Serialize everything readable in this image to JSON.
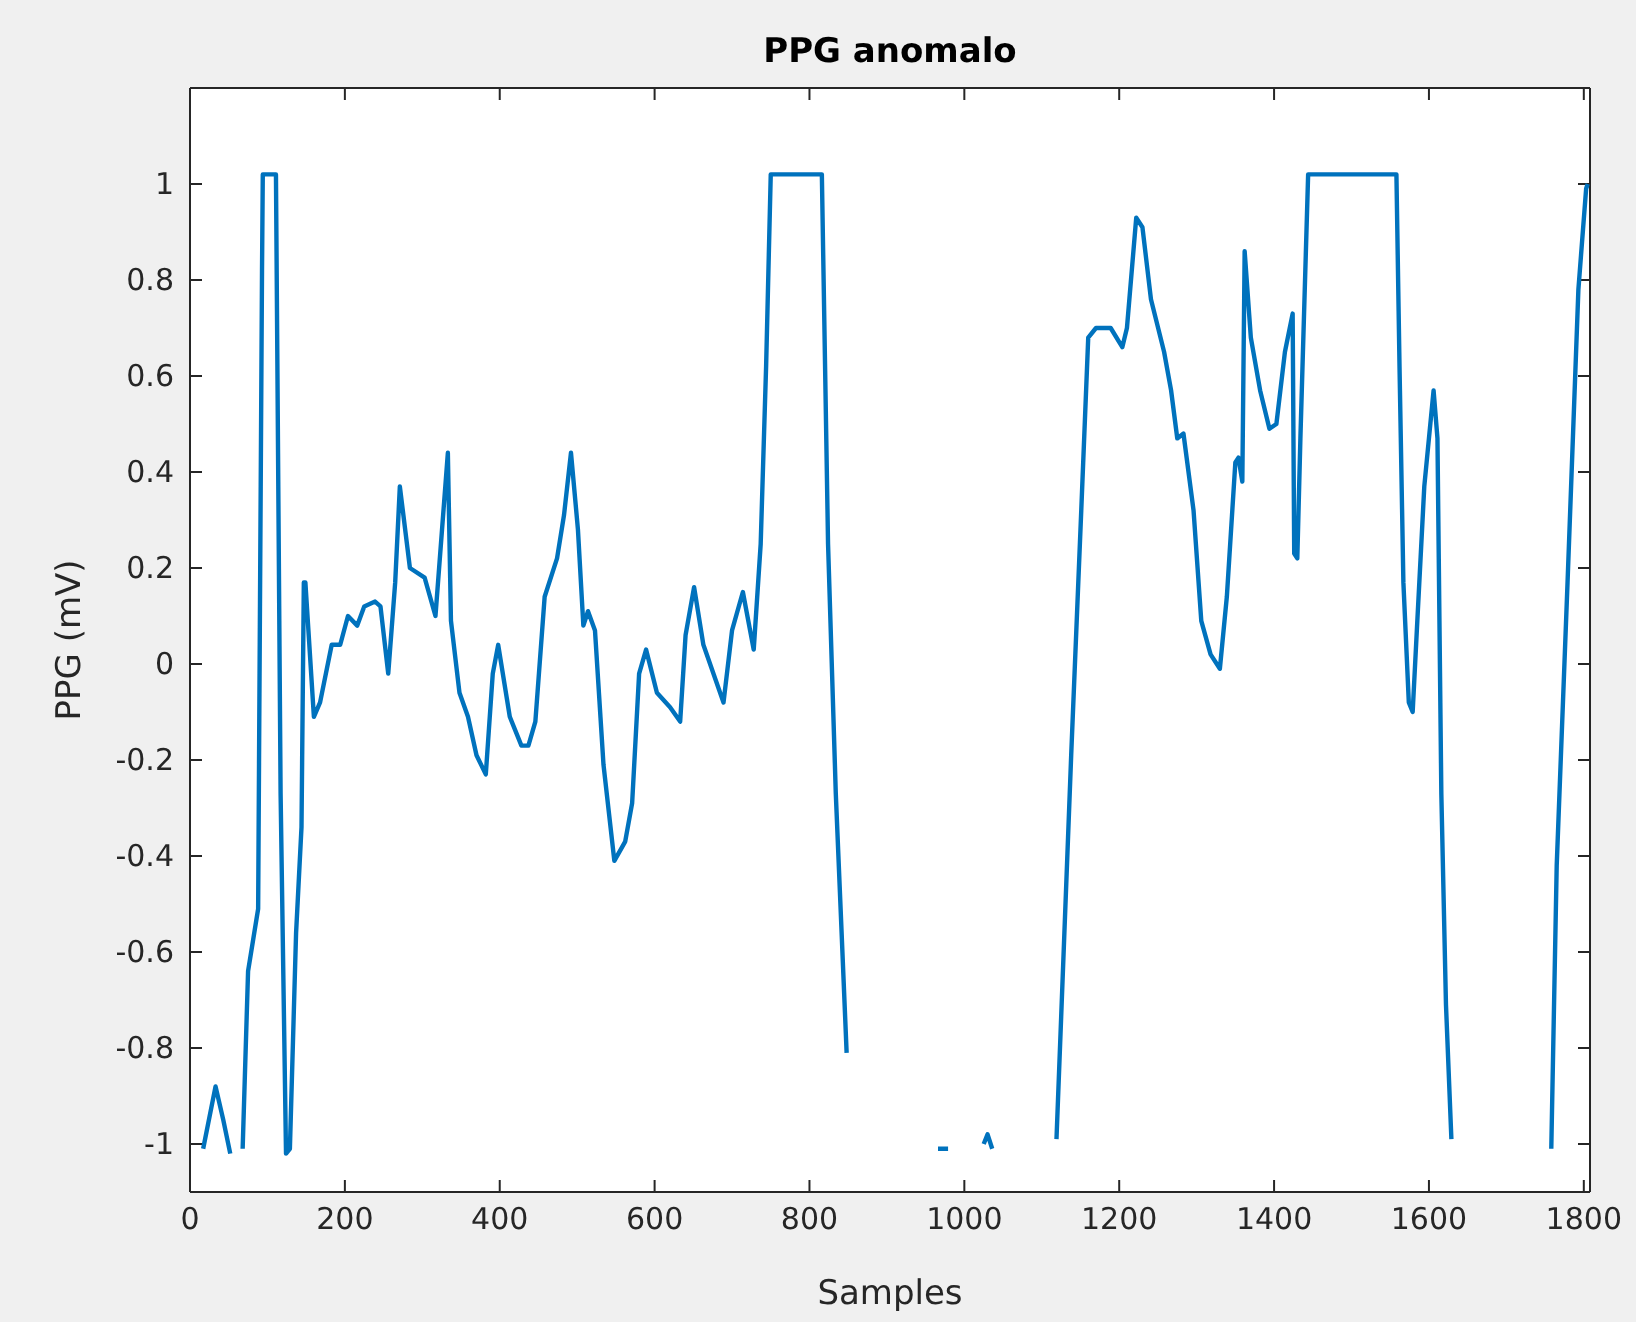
{
  "chart_data": {
    "type": "line",
    "title": "PPG anomalo",
    "xlabel": "Samples",
    "ylabel": "PPG (mV)",
    "xlim": [
      0,
      1808
    ],
    "xticks": [
      0,
      200,
      400,
      600,
      800,
      1000,
      1200,
      1400,
      1600,
      1800
    ],
    "ylim": [
      -1.1,
      1.2
    ],
    "yticks": [
      -1,
      -0.8,
      -0.6,
      -0.4,
      -0.2,
      0,
      0.2,
      0.4,
      0.6,
      0.8,
      1
    ],
    "grid": false,
    "marker": "none",
    "line_style": "solid",
    "x": [
      17,
      33,
      43,
      52,
      60,
      68,
      75,
      82,
      88,
      93,
      94,
      111,
      117,
      124,
      129,
      137,
      144,
      147,
      149,
      160,
      168,
      183,
      194,
      204,
      216,
      225,
      239,
      246,
      256,
      265,
      271,
      284,
      303,
      317,
      333,
      337,
      348,
      359,
      370,
      382,
      391,
      398,
      413,
      428,
      437,
      446,
      458,
      474,
      483,
      492,
      501,
      508,
      514,
      523,
      534,
      548,
      562,
      571,
      580,
      589,
      603,
      620,
      633,
      640,
      651,
      663,
      689,
      700,
      714,
      728,
      737,
      744,
      750,
      816,
      824,
      834,
      848,
      900,
      966,
      979,
      1000,
      1025,
      1030,
      1036,
      1080,
      1119,
      1138,
      1151,
      1160,
      1170,
      1189,
      1204,
      1210,
      1222,
      1230,
      1241,
      1258,
      1267,
      1275,
      1283,
      1296,
      1306,
      1318,
      1330,
      1339,
      1350,
      1354,
      1359,
      1362,
      1370,
      1382,
      1394,
      1403,
      1414,
      1424,
      1426,
      1430,
      1434,
      1444,
      1558,
      1562,
      1567,
      1574,
      1579,
      1585,
      1594,
      1606,
      1611,
      1616,
      1622,
      1629,
      1700,
      1758,
      1765,
      1779,
      1793,
      1803,
      1805
    ],
    "series": [
      {
        "color": "#0072bd",
        "values": [
          -1.01,
          -0.88,
          -0.95,
          -1.02,
          null,
          -1.01,
          -0.64,
          -0.57,
          -0.51,
          0.82,
          1.02,
          1.02,
          -0.27,
          -1.02,
          -1.01,
          -0.56,
          -0.34,
          0.17,
          0.17,
          -0.11,
          -0.08,
          0.04,
          0.04,
          0.1,
          0.08,
          0.12,
          0.13,
          0.12,
          -0.02,
          0.17,
          0.37,
          0.2,
          0.18,
          0.1,
          0.44,
          0.09,
          -0.06,
          -0.11,
          -0.19,
          -0.23,
          -0.02,
          0.04,
          -0.11,
          -0.17,
          -0.17,
          -0.12,
          0.14,
          0.22,
          0.31,
          0.44,
          0.28,
          0.08,
          0.11,
          0.07,
          -0.21,
          -0.41,
          -0.37,
          -0.29,
          -0.02,
          0.03,
          -0.06,
          -0.09,
          -0.12,
          0.06,
          0.16,
          0.04,
          -0.08,
          0.07,
          0.15,
          0.03,
          0.25,
          0.62,
          1.02,
          1.02,
          0.25,
          -0.27,
          -0.81,
          null,
          -1.01,
          -1.01,
          null,
          -1.0,
          -0.98,
          -1.01,
          null,
          -0.99,
          -0.19,
          0.32,
          0.68,
          0.7,
          0.7,
          0.66,
          0.7,
          0.93,
          0.91,
          0.76,
          0.65,
          0.57,
          0.47,
          0.48,
          0.32,
          0.09,
          0.02,
          -0.01,
          0.14,
          0.42,
          0.43,
          0.38,
          0.86,
          0.68,
          0.57,
          0.49,
          0.5,
          0.65,
          0.73,
          0.23,
          0.22,
          0.47,
          1.02,
          1.02,
          0.62,
          0.17,
          -0.08,
          -0.1,
          0.09,
          0.37,
          0.57,
          0.47,
          -0.27,
          -0.71,
          -0.99,
          null,
          -1.01,
          -0.42,
          0.17,
          0.78,
          0.99,
          1.0
        ]
      }
    ]
  }
}
